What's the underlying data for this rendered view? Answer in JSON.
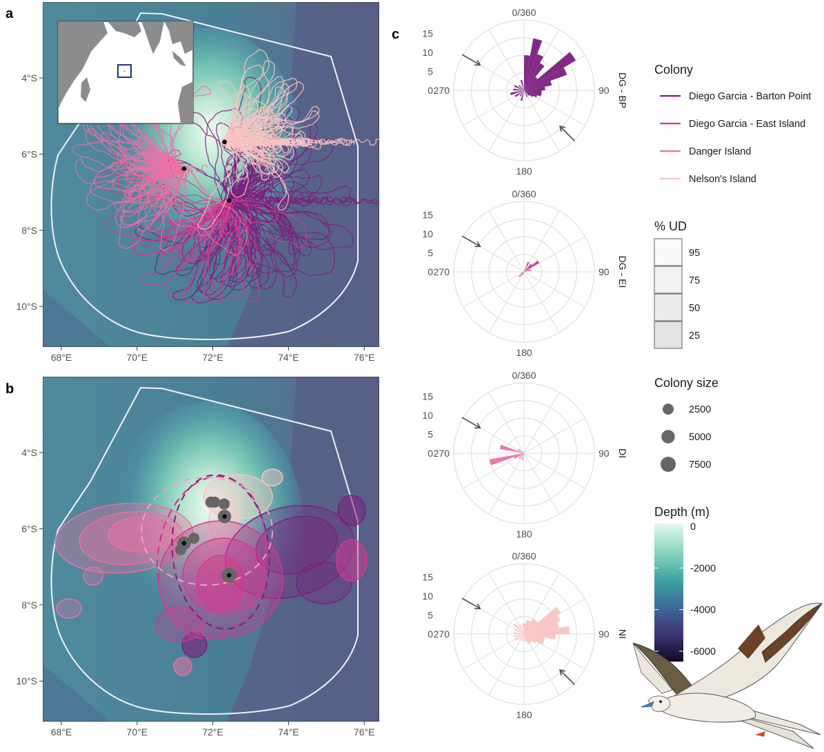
{
  "panel_labels": [
    "a",
    "b",
    "c"
  ],
  "colors": {
    "Diego Garcia - Barton Point": "#7b1f7e",
    "Diego Garcia - East Island": "#d6388f",
    "Danger Island": "#ef6fa4",
    "Nelson's Island": "#f9c3c3"
  },
  "chart_data": [
    {
      "type": "scatter",
      "panel": "a",
      "title": "",
      "xlabel": "",
      "ylabel": "",
      "x_ticks": [
        "68°E",
        "70°E",
        "72°E",
        "74°E",
        "76°E"
      ],
      "y_ticks": [
        "4°S",
        "6°S",
        "8°S",
        "10°S"
      ],
      "xlim": [
        67.5,
        76.5
      ],
      "ylim": [
        -11.0,
        -2.0
      ],
      "colonies": [
        {
          "name": "Diego Garcia - Barton Point",
          "lon": 72.43,
          "lat": -7.22
        },
        {
          "name": "Danger Island",
          "lon": 71.24,
          "lat": -6.38
        },
        {
          "name": "Nelson's Island",
          "lon": 72.31,
          "lat": -5.68
        }
      ],
      "inset": {
        "region": "Indian Ocean",
        "box_lon": 72.2,
        "box_lat": -6.5
      }
    },
    {
      "type": "heatmap",
      "panel": "b",
      "title": "",
      "x_ticks": [
        "68°E",
        "70°E",
        "72°E",
        "74°E",
        "76°E"
      ],
      "y_ticks": [
        "4°S",
        "6°S",
        "8°S",
        "10°S"
      ],
      "xlim": [
        67.5,
        76.5
      ],
      "ylim": [
        -11.0,
        -2.0
      ],
      "colonies_size": [
        {
          "lon": 72.43,
          "lat": -7.22,
          "size": 7500
        },
        {
          "lon": 71.24,
          "lat": -6.38,
          "size": 5000
        },
        {
          "lon": 72.31,
          "lat": -5.68,
          "size": 5000
        },
        {
          "lon": 71.5,
          "lat": -6.25,
          "size": 2500
        },
        {
          "lon": 71.15,
          "lat": -6.55,
          "size": 2500
        },
        {
          "lon": 71.95,
          "lat": -5.3,
          "size": 2500
        },
        {
          "lon": 72.05,
          "lat": -5.3,
          "size": 2500
        },
        {
          "lon": 72.3,
          "lat": -5.35,
          "size": 2500
        }
      ],
      "hotspots": [
        {
          "colony": "Diego Garcia - Barton Point",
          "lon": 75.6,
          "lat": -5.8
        },
        {
          "colony": "Diego Garcia - Barton Point",
          "lon": 71.5,
          "lat": -9.0
        },
        {
          "colony": "Diego Garcia - East Island",
          "lon": 75.6,
          "lat": -6.9
        },
        {
          "colony": "Danger Island",
          "lon": 71.2,
          "lat": -9.6
        },
        {
          "colony": "Danger Island",
          "lon": 68.1,
          "lat": -8.1
        }
      ]
    },
    {
      "type": "bar",
      "panel": "c",
      "subtype": "polar-histogram",
      "angle_labels": [
        "0/360",
        "90",
        "180",
        "270"
      ],
      "radial_ticks": [
        "0",
        "5",
        "10",
        "15"
      ],
      "rlim": [
        0,
        20
      ],
      "bin_width_deg": 10,
      "facets": [
        {
          "strip": "DG - BP",
          "colony": "Diego Garcia - Barton Point",
          "bins": [
            {
              "angle": 5,
              "value": 10
            },
            {
              "angle": 15,
              "value": 15
            },
            {
              "angle": 25,
              "value": 11
            },
            {
              "angle": 35,
              "value": 9
            },
            {
              "angle": 45,
              "value": 5
            },
            {
              "angle": 55,
              "value": 17
            },
            {
              "angle": 65,
              "value": 13
            },
            {
              "angle": 75,
              "value": 8
            },
            {
              "angle": 85,
              "value": 6
            },
            {
              "angle": 95,
              "value": 5
            },
            {
              "angle": 105,
              "value": 5
            },
            {
              "angle": 115,
              "value": 4
            },
            {
              "angle": 125,
              "value": 3
            },
            {
              "angle": 135,
              "value": 2
            },
            {
              "angle": 155,
              "value": 2
            },
            {
              "angle": 195,
              "value": 3
            },
            {
              "angle": 215,
              "value": 2
            },
            {
              "angle": 235,
              "value": 3
            },
            {
              "angle": 255,
              "value": 4
            },
            {
              "angle": 275,
              "value": 3
            },
            {
              "angle": 295,
              "value": 3
            },
            {
              "angle": 315,
              "value": 2
            },
            {
              "angle": 345,
              "value": 3
            }
          ],
          "arrows": [
            300,
            135
          ]
        },
        {
          "strip": "DG - EI",
          "colony": "Diego Garcia - East Island",
          "bins": [
            {
              "angle": 25,
              "value": 3
            },
            {
              "angle": 45,
              "value": 3
            },
            {
              "angle": 55,
              "value": 5
            },
            {
              "angle": 75,
              "value": 2
            },
            {
              "angle": 205,
              "value": 1
            },
            {
              "angle": 225,
              "value": 2
            },
            {
              "angle": 245,
              "value": 1
            }
          ],
          "arrows": [
            300
          ]
        },
        {
          "strip": "DI",
          "colony": "Danger Island",
          "bins": [
            {
              "angle": 255,
              "value": 10
            },
            {
              "angle": 285,
              "value": 7
            },
            {
              "angle": 245,
              "value": 3
            },
            {
              "angle": 225,
              "value": 2
            },
            {
              "angle": 195,
              "value": 2
            },
            {
              "angle": 305,
              "value": 2
            }
          ],
          "arrows": [
            300
          ]
        },
        {
          "strip": "NI",
          "colony": "Nelson's Island",
          "bins": [
            {
              "angle": 5,
              "value": 3
            },
            {
              "angle": 15,
              "value": 4
            },
            {
              "angle": 25,
              "value": 4
            },
            {
              "angle": 35,
              "value": 5
            },
            {
              "angle": 45,
              "value": 5
            },
            {
              "angle": 55,
              "value": 12
            },
            {
              "angle": 65,
              "value": 11
            },
            {
              "angle": 75,
              "value": 10
            },
            {
              "angle": 85,
              "value": 13
            },
            {
              "angle": 95,
              "value": 9
            },
            {
              "angle": 105,
              "value": 6
            },
            {
              "angle": 115,
              "value": 6
            },
            {
              "angle": 125,
              "value": 4
            },
            {
              "angle": 135,
              "value": 3
            },
            {
              "angle": 145,
              "value": 3
            },
            {
              "angle": 155,
              "value": 3
            },
            {
              "angle": 165,
              "value": 2
            },
            {
              "angle": 175,
              "value": 2
            },
            {
              "angle": 195,
              "value": 2
            },
            {
              "angle": 215,
              "value": 2
            },
            {
              "angle": 235,
              "value": 3
            },
            {
              "angle": 255,
              "value": 3
            },
            {
              "angle": 275,
              "value": 3
            },
            {
              "angle": 295,
              "value": 3
            },
            {
              "angle": 315,
              "value": 4
            },
            {
              "angle": 335,
              "value": 3
            },
            {
              "angle": 355,
              "value": 3
            }
          ],
          "arrows": [
            300,
            135
          ]
        }
      ]
    }
  ],
  "legend": {
    "colony_title": "Colony",
    "colonies": [
      "Diego Garcia - Barton Point",
      "Diego Garcia - East Island",
      "Danger Island",
      "Nelson's Island"
    ],
    "ud_title": "% UD",
    "ud_levels": [
      "95",
      "75",
      "50",
      "25"
    ],
    "size_title": "Colony size",
    "sizes": [
      {
        "label": "2500",
        "value": 2500
      },
      {
        "label": "5000",
        "value": 5000
      },
      {
        "label": "7500",
        "value": 7500
      }
    ],
    "depth_title": "Depth (m)",
    "depth_ticks": [
      "0",
      "-2000",
      "-4000",
      "-6000"
    ],
    "depth_range": [
      -6500,
      0
    ]
  }
}
